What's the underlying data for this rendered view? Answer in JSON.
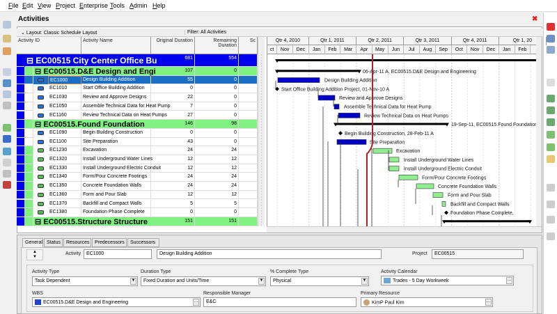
{
  "menu": [
    "File",
    "Edit",
    "View",
    "Project",
    "Enterprise",
    "Tools",
    "Admin",
    "Help"
  ],
  "title": "Activities",
  "layout_label": "Layout: Classic Schedule Layout",
  "filter_label": "Filter: All Activities",
  "columns": {
    "id": "Activity ID",
    "name": "Activity Name",
    "orig": "Original Duration",
    "rem": "Remaining Duration",
    "sc": "Sc"
  },
  "timescale": {
    "quarters": [
      "Qtr 4, 2010",
      "Qtr 1, 2011",
      "Qtr 2, 2011",
      "Qtr 3, 2011",
      "Qtr 4, 2011",
      "Qtr 1, 20"
    ],
    "months": [
      "ct",
      "Nov",
      "Dec",
      "Jan",
      "Feb",
      "Mar",
      "Apr",
      "May",
      "Jun",
      "Jul",
      "Aug",
      "Sep",
      "Oct",
      "Nov",
      "Dec",
      "Jan",
      "Feb"
    ]
  },
  "rows": [
    {
      "kind": "project",
      "id": "EC00515  City Center Office Bu",
      "orig": "681",
      "rem": "554",
      "gantt": ""
    },
    {
      "kind": "wbs",
      "id": "EC00515.D&E  Design and Engi",
      "orig": "107",
      "rem": "0",
      "gantt": "06-Apr-11 A, EC00515.D&E  Design and Engineering"
    },
    {
      "kind": "done",
      "id": "EC1000",
      "name": "Design Building Addition",
      "orig": "55",
      "rem": "0",
      "gantt": "Design Building Addition",
      "selected": true
    },
    {
      "kind": "done",
      "id": "EC1010",
      "name": "Start Office Building Addition",
      "orig": "0",
      "rem": "0",
      "gantt": "Start Office Building Addition Project, 01-Nov-10 A"
    },
    {
      "kind": "done",
      "id": "EC1030",
      "name": "Review and Approve Designs",
      "orig": "22",
      "rem": "0",
      "gantt": "Review and Approve Designs"
    },
    {
      "kind": "done",
      "id": "EC1050",
      "name": "Assemble Technical Data for Heat Pump",
      "orig": "7",
      "rem": "0",
      "gantt": "Assemble Technical Data for Heat Pump"
    },
    {
      "kind": "done",
      "id": "EC1160",
      "name": "Review Technical Data on Heat Pumps",
      "orig": "27",
      "rem": "0",
      "gantt": "Review Technical Data on Heat Pumps"
    },
    {
      "kind": "wbs",
      "id": "EC00515.Found  Foundation",
      "orig": "146",
      "rem": "98",
      "gantt": "19-Sep-11, EC00515.Found  Foundation"
    },
    {
      "kind": "done",
      "id": "EC1090",
      "name": "Begin Building Construction",
      "orig": "0",
      "rem": "0",
      "gantt": "Begin Building Construction, 28-Feb-11 A"
    },
    {
      "kind": "done",
      "id": "EC1100",
      "name": "Site Preparation",
      "orig": "43",
      "rem": "0",
      "gantt": "Site Preparation"
    },
    {
      "kind": "todo",
      "id": "EC1230",
      "name": "Excavation",
      "orig": "24",
      "rem": "24",
      "gantt": "Excavation"
    },
    {
      "kind": "todo",
      "id": "EC1320",
      "name": "Install Underground Water Lines",
      "orig": "12",
      "rem": "12",
      "gantt": "Install Underground Water Lines"
    },
    {
      "kind": "todo",
      "id": "EC1330",
      "name": "Install Underground Electric Conduit",
      "orig": "12",
      "rem": "12",
      "gantt": "Install Underground Electric Conduit"
    },
    {
      "kind": "todo",
      "id": "EC1340",
      "name": "Form/Pour Concrete Footings",
      "orig": "24",
      "rem": "24",
      "gantt": "Form/Pour Concrete Footings"
    },
    {
      "kind": "todo",
      "id": "EC1350",
      "name": "Concrete Foundation Walls",
      "orig": "24",
      "rem": "24",
      "gantt": "Concrete Foundation Walls"
    },
    {
      "kind": "todo",
      "id": "EC1360",
      "name": "Form and Pour Slab",
      "orig": "12",
      "rem": "12",
      "gantt": "Form and Pour Slab"
    },
    {
      "kind": "todo",
      "id": "EC1370",
      "name": "Backfill and Compact Walls",
      "orig": "5",
      "rem": "5",
      "gantt": "Backfill and Compact Walls"
    },
    {
      "kind": "todo",
      "id": "EC1380",
      "name": "Foundation Phase Complete",
      "orig": "0",
      "rem": "0",
      "gantt": "Foundation Phase Complete,"
    },
    {
      "kind": "wbs",
      "id": "EC00515.Structure  Structure",
      "orig": "151",
      "rem": "151",
      "gantt": ""
    }
  ],
  "details": {
    "tabs": [
      "General",
      "Status",
      "Resources",
      "Predecessors",
      "Successors"
    ],
    "activity_label": "Activity",
    "activity_id": "EC1000",
    "activity_name": "Design Building Addition",
    "project_label": "Project",
    "project": "EC00515",
    "activity_type_label": "Activity Type",
    "activity_type": "Task Dependent",
    "duration_type_label": "Duration Type",
    "duration_type": "Fixed Duration and Units/Time",
    "pct_type_label": "% Complete Type",
    "pct_type": "Physical",
    "calendar_label": "Activity Calendar",
    "calendar": "Trades -  5 Day Workweek",
    "wbs_label": "WBS",
    "wbs": "EC00515.D&E  Design and Engineering",
    "manager_label": "Responsible Manager",
    "manager": "E&C",
    "resource_label": "Primary Resource",
    "resource": "KimP  Paul Kim"
  },
  "colors": {
    "project": "#0000ee",
    "wbs": "#80f080",
    "selected": "#1a6fc4",
    "done_bar": "#0000cc",
    "todo_bar": "#90ee90",
    "data_date": "#b22222"
  }
}
